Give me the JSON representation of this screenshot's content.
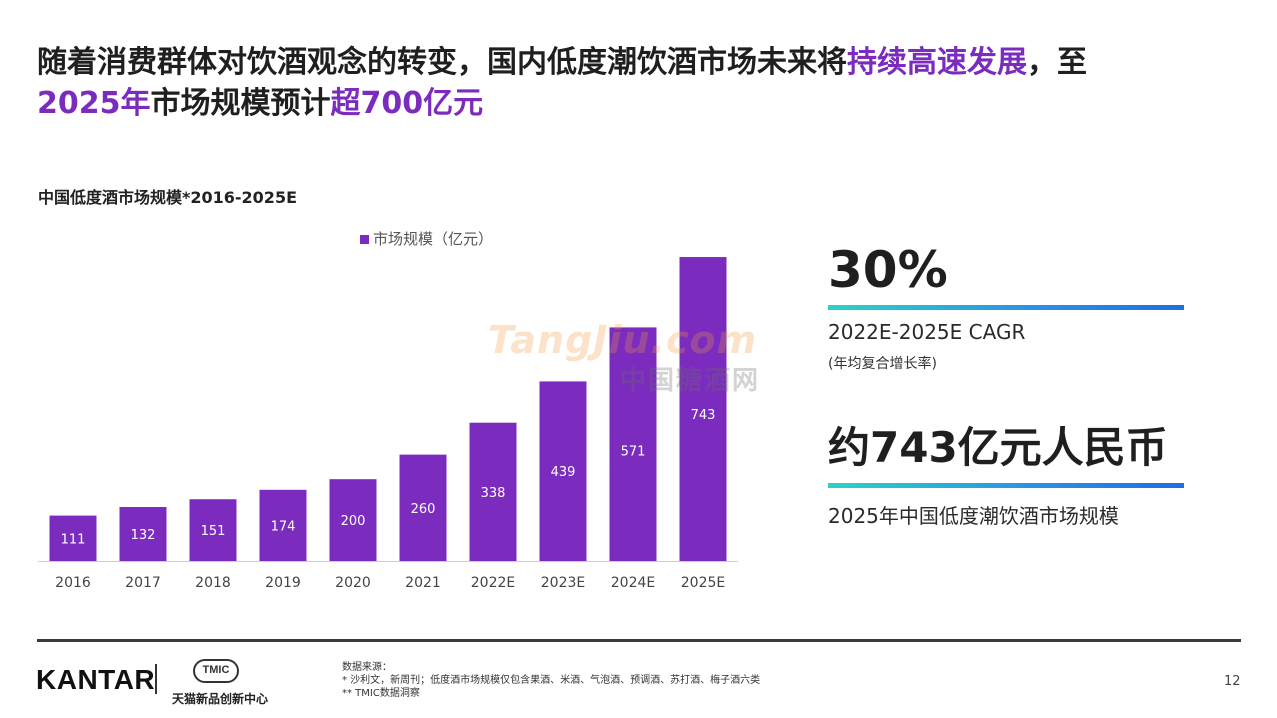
{
  "headline": {
    "part1": "随着消费群体对饮酒观念的转变，国内低度潮饮酒市场未来将",
    "highlight1": "持续高速发展",
    "part2": "，至",
    "highlight2": "2025年",
    "part3": "市场规模预计",
    "highlight3": "超700亿元"
  },
  "chart_title": "中国低度酒市场规模*2016-2025E",
  "chart_data": {
    "type": "bar",
    "title": "中国低度酒市场规模*2016-2025E",
    "legend": "市场规模（亿元）",
    "categories": [
      "2016",
      "2017",
      "2018",
      "2019",
      "2020",
      "2021",
      "2022E",
      "2023E",
      "2024E",
      "2025E"
    ],
    "values": [
      111,
      132,
      151,
      174,
      200,
      260,
      338,
      439,
      571,
      743
    ],
    "ylim": [
      0,
      770
    ],
    "xlabel": "",
    "ylabel": "",
    "bar_color": "#7b2cbf",
    "label_color": "#ffffff"
  },
  "watermark": {
    "en": "TangJiu.com",
    "cn": "中国糖酒网"
  },
  "stats": {
    "cagr_value": "30%",
    "cagr_label": "2022E-2025E CAGR",
    "cagr_sub": "(年均复合增长率)",
    "size_value": "约743亿元人民币",
    "size_label": "2025年中国低度潮饮酒市场规模"
  },
  "footer": {
    "kantar": "KANTAR",
    "tmic": "TMIC",
    "tmic_sub": "天猫新品创新中心",
    "source_title": "数据来源：",
    "source_1": "* 沙利文，新周刊；低度酒市场规模仅包含果酒、米酒、气泡酒、预调酒、苏打酒、梅子酒六类",
    "source_2": "** TMIC数据洞察",
    "page": "12"
  },
  "colors": {
    "accent": "#7b2cbf",
    "rule_start": "#2ad4c3",
    "rule_end": "#1f6fe0"
  }
}
